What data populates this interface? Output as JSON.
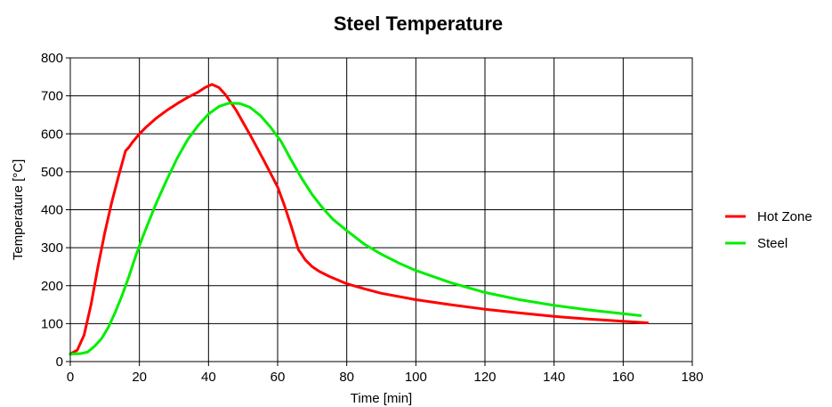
{
  "chart_data": {
    "type": "line",
    "title": "Steel Temperature",
    "xlabel": "Time [min]",
    "ylabel": "Temperature [°C]",
    "xlim": [
      0,
      180
    ],
    "ylim": [
      0,
      800
    ],
    "x_ticks": [
      0,
      20,
      40,
      60,
      80,
      100,
      120,
      140,
      160,
      180
    ],
    "y_ticks": [
      0,
      100,
      200,
      300,
      400,
      500,
      600,
      700,
      800
    ],
    "grid": true,
    "legend_position": "right",
    "series": [
      {
        "name": "Hot Zone",
        "color": "#ff0000",
        "points": [
          [
            0,
            20
          ],
          [
            2,
            30
          ],
          [
            4,
            70
          ],
          [
            6,
            150
          ],
          [
            8,
            250
          ],
          [
            10,
            340
          ],
          [
            12,
            420
          ],
          [
            14,
            490
          ],
          [
            16,
            555
          ],
          [
            17,
            565
          ],
          [
            18,
            578
          ],
          [
            20,
            600
          ],
          [
            22,
            618
          ],
          [
            25,
            642
          ],
          [
            28,
            662
          ],
          [
            31,
            680
          ],
          [
            34,
            696
          ],
          [
            37,
            710
          ],
          [
            39,
            722
          ],
          [
            41,
            730
          ],
          [
            43,
            722
          ],
          [
            45,
            702
          ],
          [
            48,
            662
          ],
          [
            52,
            598
          ],
          [
            56,
            530
          ],
          [
            60,
            460
          ],
          [
            62,
            410
          ],
          [
            64,
            355
          ],
          [
            66,
            295
          ],
          [
            67,
            282
          ],
          [
            68,
            268
          ],
          [
            70,
            250
          ],
          [
            72,
            238
          ],
          [
            75,
            224
          ],
          [
            80,
            205
          ],
          [
            85,
            192
          ],
          [
            90,
            180
          ],
          [
            100,
            163
          ],
          [
            110,
            150
          ],
          [
            120,
            138
          ],
          [
            130,
            128
          ],
          [
            140,
            119
          ],
          [
            150,
            112
          ],
          [
            160,
            106
          ],
          [
            167,
            102
          ]
        ]
      },
      {
        "name": "Steel",
        "color": "#00ee00",
        "points": [
          [
            0,
            20
          ],
          [
            3,
            21
          ],
          [
            5,
            25
          ],
          [
            7,
            40
          ],
          [
            9,
            60
          ],
          [
            11,
            90
          ],
          [
            13,
            130
          ],
          [
            15,
            175
          ],
          [
            17,
            225
          ],
          [
            19,
            280
          ],
          [
            21,
            330
          ],
          [
            23,
            375
          ],
          [
            25,
            420
          ],
          [
            28,
            480
          ],
          [
            31,
            537
          ],
          [
            34,
            585
          ],
          [
            37,
            622
          ],
          [
            40,
            652
          ],
          [
            43,
            672
          ],
          [
            46,
            681
          ],
          [
            49,
            680
          ],
          [
            52,
            670
          ],
          [
            55,
            648
          ],
          [
            58,
            617
          ],
          [
            61,
            580
          ],
          [
            64,
            530
          ],
          [
            67,
            482
          ],
          [
            70,
            440
          ],
          [
            73,
            405
          ],
          [
            76,
            375
          ],
          [
            80,
            345
          ],
          [
            85,
            310
          ],
          [
            90,
            283
          ],
          [
            95,
            260
          ],
          [
            100,
            240
          ],
          [
            110,
            208
          ],
          [
            120,
            182
          ],
          [
            130,
            163
          ],
          [
            140,
            148
          ],
          [
            150,
            136
          ],
          [
            160,
            126
          ],
          [
            165,
            121
          ]
        ]
      }
    ]
  }
}
